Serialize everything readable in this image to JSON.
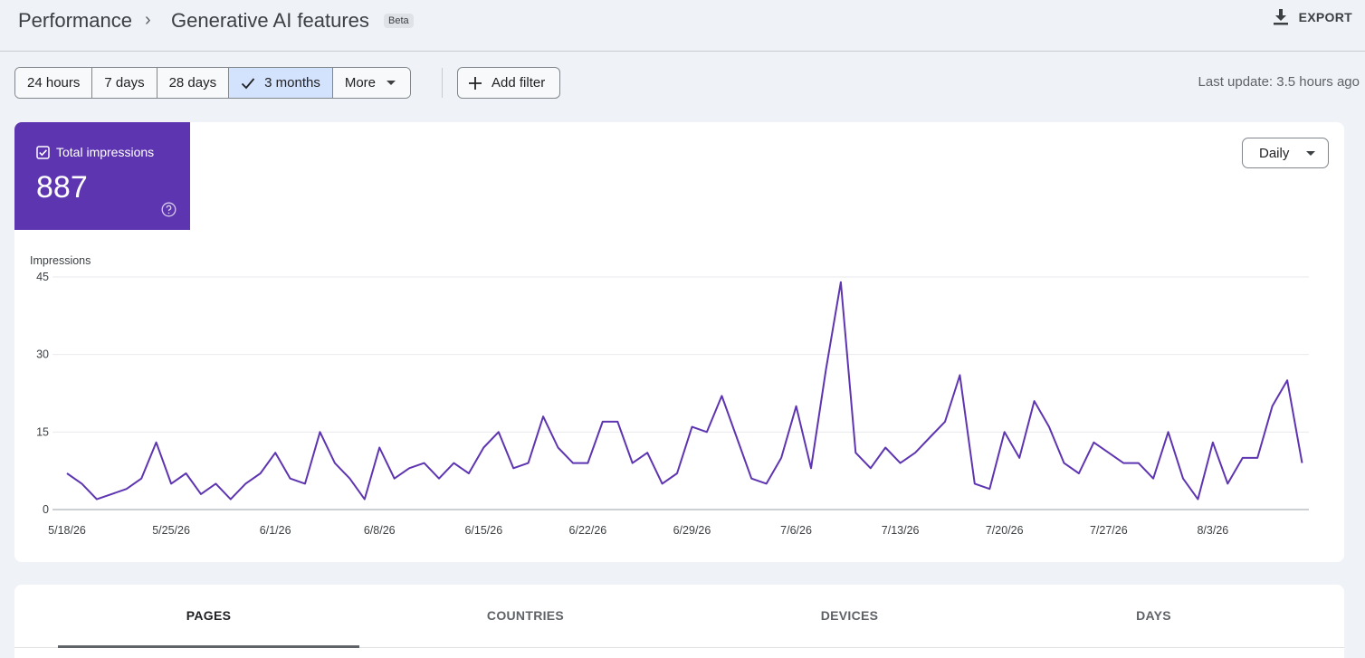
{
  "header": {
    "breadcrumb_root": "Performance",
    "breadcrumb_current": "Generative AI features",
    "badge": "Beta",
    "export_label": "EXPORT"
  },
  "toolbar": {
    "ranges": [
      "24 hours",
      "7 days",
      "28 days",
      "3 months"
    ],
    "selected_range": "3 months",
    "more_label": "More",
    "add_filter_label": "Add filter",
    "last_update": "Last update: 3.5 hours ago"
  },
  "metric": {
    "label": "Total impressions",
    "value": "887",
    "checked": true,
    "color": "#5e35b1"
  },
  "granularity": "Daily",
  "chart_data": {
    "type": "line",
    "ylabel": "Impressions",
    "ylim": [
      0,
      45
    ],
    "yticks": [
      0,
      15,
      30,
      45
    ],
    "grid": true,
    "series_color": "#5e35b1",
    "x_start": "5/18/26",
    "x_tick_labels": [
      "5/18/26",
      "5/25/26",
      "6/1/26",
      "6/8/26",
      "6/15/26",
      "6/22/26",
      "6/29/26",
      "7/6/26",
      "7/13/26",
      "7/20/26",
      "7/27/26",
      "8/3/26"
    ],
    "series": [
      {
        "values": [
          7,
          5,
          2,
          3,
          4,
          6,
          13,
          5,
          7,
          3,
          5,
          2,
          5,
          7,
          11,
          6,
          5,
          15,
          9,
          6,
          2,
          12,
          6,
          8,
          9,
          6,
          9,
          7,
          12,
          15,
          8,
          9,
          18,
          12,
          9,
          9,
          17,
          17,
          9,
          11,
          5,
          7,
          16,
          15,
          22,
          14,
          6,
          5,
          10,
          20,
          8,
          27,
          44,
          11,
          8,
          12,
          9,
          11,
          14,
          17,
          26,
          5,
          4,
          15,
          10,
          21,
          16,
          9,
          7,
          13,
          11,
          9,
          9,
          6,
          15,
          6,
          2,
          13,
          5,
          10,
          10,
          20,
          25,
          9
        ]
      }
    ]
  },
  "tabs": [
    "PAGES",
    "COUNTRIES",
    "DEVICES",
    "DAYS"
  ],
  "active_tab": "PAGES"
}
